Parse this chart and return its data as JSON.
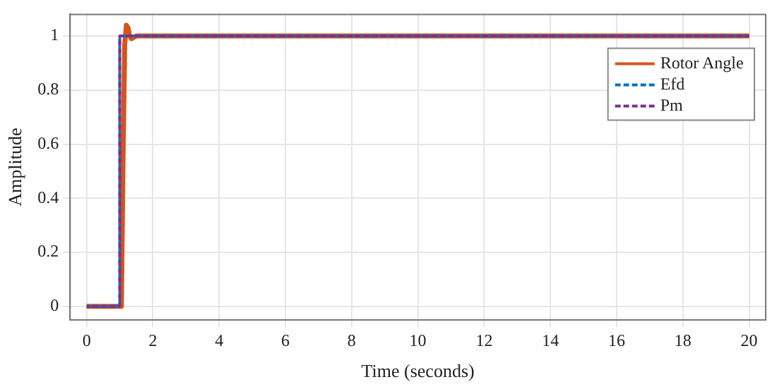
{
  "chart_data": {
    "type": "line",
    "xlabel": "Time (seconds)",
    "ylabel": "Amplitude",
    "xlim": [
      -0.5,
      20.5
    ],
    "ylim": [
      -0.05,
      1.08
    ],
    "xticks": [
      0,
      2,
      4,
      6,
      8,
      10,
      12,
      14,
      16,
      18,
      20
    ],
    "yticks": [
      0,
      0.2,
      0.4,
      0.6,
      0.8,
      1
    ],
    "grid": true,
    "legend": "top right",
    "series": [
      {
        "name": "Rotor Angle",
        "color": "#d95319",
        "line_style": "solid",
        "x": [
          0,
          1.05,
          1.1,
          1.15,
          1.2,
          1.25,
          1.3,
          1.35,
          1.5,
          20
        ],
        "values": [
          0,
          0,
          0.55,
          0.97,
          1.04,
          1.03,
          1.0,
          0.99,
          1,
          1
        ]
      },
      {
        "name": "Efd",
        "color": "#0072bd",
        "line_style": "dashed",
        "x": [
          0,
          1,
          1,
          20
        ],
        "values": [
          0,
          0,
          1,
          1
        ]
      },
      {
        "name": "Pm",
        "color": "#7e2f8e",
        "line_style": "dashed",
        "x": [
          0,
          1,
          1,
          20
        ],
        "values": [
          0,
          0,
          1,
          1
        ]
      }
    ]
  }
}
